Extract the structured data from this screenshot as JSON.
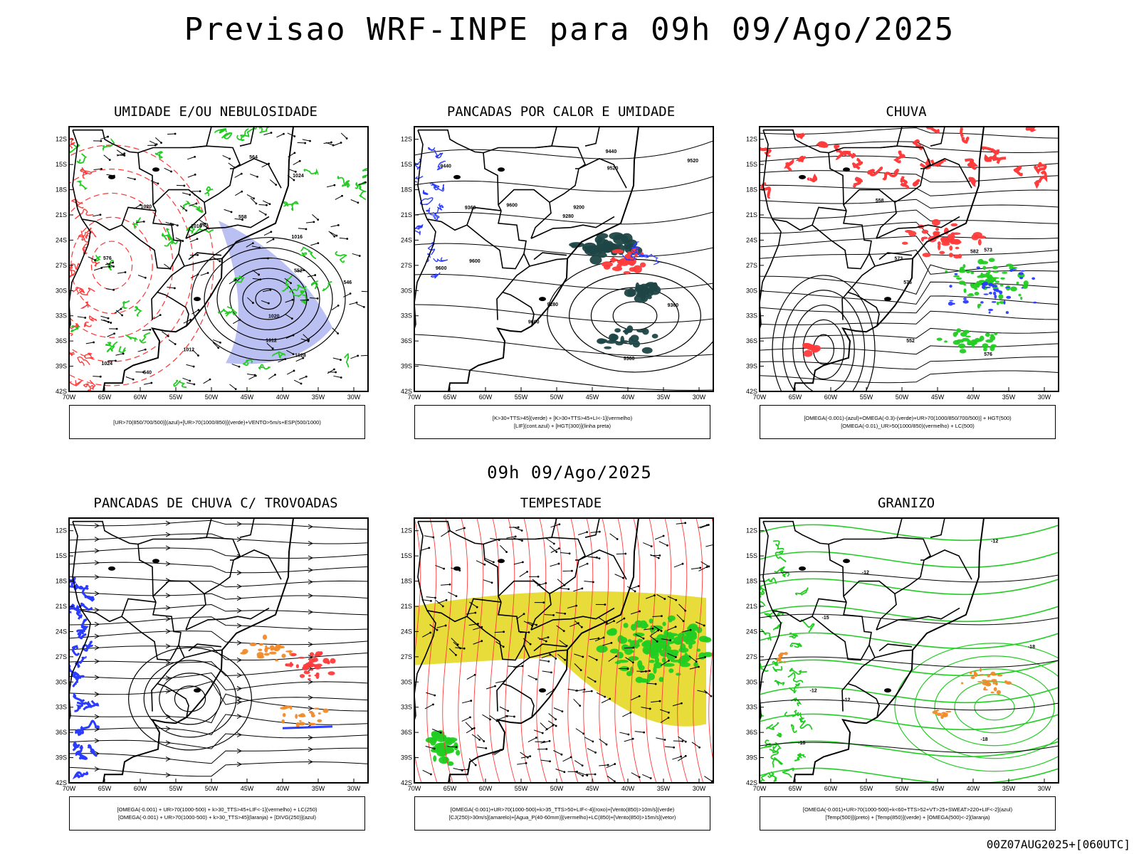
{
  "header": {
    "title": "Previsao WRF-INPE  para 09h 09/Ago/2025"
  },
  "middle_label": "09h 09/Ago/2025",
  "footer": "00Z07AUG2025+[060UTC]",
  "axes": {
    "lat_labels": [
      "12S",
      "15S",
      "18S",
      "21S",
      "24S",
      "27S",
      "30S",
      "33S",
      "36S",
      "39S",
      "42S"
    ],
    "lon_labels": [
      "70W",
      "65W",
      "60W",
      "55W",
      "50W",
      "45W",
      "40W",
      "35W",
      "30W"
    ]
  },
  "colors": {
    "blue": "#2a3cff",
    "green": "#22cc22",
    "red": "#ff3b3b",
    "orange": "#f08a2a",
    "yellow": "#e8dc3a",
    "darkslate": "#1f4646",
    "lavender": "#aab0f0",
    "dashed_red": "#ff3333"
  },
  "panels": [
    {
      "title": "UMIDADE E/OU NEBULOSIDADE",
      "legend": [
        "[UR>70(850/700/500)](azul)+[UR>70(1000/850)](verde)+VENTO>5m/s+ESP(500/1000)"
      ],
      "contour_labels": [
        "1016",
        "1020",
        "1024",
        "1028",
        "1020",
        "1012",
        "1012",
        "1016",
        "1024",
        "552",
        "558",
        "564",
        "570",
        "576",
        "540",
        "546"
      ]
    },
    {
      "title": "PANCADAS POR CALOR E UMIDADE",
      "legend": [
        "[K>30+TTS>45](verde) + [K>30+TTS>45+LI<-1](vermelho)",
        "[LIF](cont.azul) + [HGT(300)](linha preta)"
      ],
      "contour_labels": [
        "9600",
        "9600",
        "9600",
        "9520",
        "9440",
        "9520",
        "9360",
        "9280",
        "9200",
        "9440",
        "9360",
        "9280",
        "9360",
        "9600"
      ]
    },
    {
      "title": "CHUVA",
      "legend": [
        "[OMEGA(-0.001)-(azul)+OMEGA(-0.3)-(verde)+UR>70(1000/850/700/500)] + HGT(500)",
        "[OMEGA(-0.01)_UR>50(1000/850)(vermelho) + LC(500)"
      ],
      "contour_labels": [
        "582",
        "576",
        "573",
        "576",
        "552",
        "558",
        "573"
      ]
    },
    {
      "title": "PANCADAS DE CHUVA C/ TROVOADAS",
      "legend": [
        "[OMEGA(-0.001) + UR>70(1000-500) + k>30_TTS>45+LIF<-1](vermelho) + LC(250)",
        "[OMEGA(-0.001) + UR>70(1000-500) + k>30_TTS>45](laranja) + [DIVG(250)](azul)"
      ],
      "contour_labels": []
    },
    {
      "title": "TEMPESTADE",
      "legend": [
        "[OMEGA(-0.001)+UR>70(1000-500)+k>35_TTS>50+LIF<-4](roxo)+[Vento(850)>10m/s](verde)",
        "[CJ(250)>30m/s](amarelo)+[Agua_P(40-60mm)](vermelho)+LC(850)+[Vento(850)>15m/s](vetor)"
      ],
      "contour_labels": []
    },
    {
      "title": "GRANIZO",
      "legend": [
        "[OMEGA(-0.001)+UR>70(1000-500)+k<60+TTS>52+VT>25+SWEAT>220+LIF<-2](azul)",
        "[Temp(500)](preto) + [Temp(850)](verde) + [OMEGA(500)<-2](laranja)"
      ],
      "contour_labels": [
        "-12",
        "-12",
        "-12",
        "-18",
        "-15",
        "-12",
        "-18",
        "-18"
      ]
    }
  ]
}
